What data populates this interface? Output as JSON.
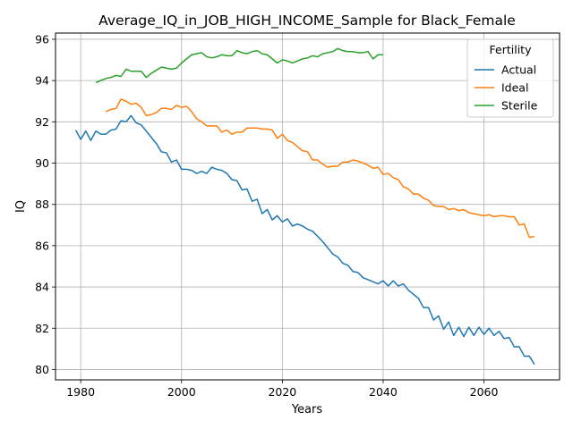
{
  "chart_data": {
    "type": "line",
    "title": "Average_IQ_in_JOB_HIGH_INCOME_Sample for Black_Female",
    "xlabel": "Years",
    "ylabel": "IQ",
    "xlim": [
      1975,
      2075
    ],
    "ylim": [
      79.5,
      96.3
    ],
    "xticks": [
      1980,
      2000,
      2020,
      2040,
      2060
    ],
    "yticks": [
      80,
      82,
      84,
      86,
      88,
      90,
      92,
      94,
      96
    ],
    "grid": true,
    "legend": {
      "title": "Fertility",
      "placement": "upper right"
    },
    "series": [
      {
        "name": "Actual",
        "color": "#1f77b4",
        "x": [
          1979,
          1980,
          1981,
          1982,
          1983,
          1984,
          1985,
          1986,
          1987,
          1988,
          1989,
          1990,
          1991,
          1992,
          1993,
          1994,
          1995,
          1996,
          1997,
          1998,
          1999,
          2000,
          2001,
          2002,
          2003,
          2004,
          2005,
          2006,
          2007,
          2008,
          2009,
          2010,
          2011,
          2012,
          2013,
          2014,
          2015,
          2016,
          2017,
          2018,
          2019,
          2020,
          2021,
          2022,
          2023,
          2024,
          2025,
          2026,
          2027,
          2028,
          2029,
          2030,
          2031,
          2032,
          2033,
          2034,
          2035,
          2036,
          2037,
          2038,
          2039,
          2040,
          2041,
          2042,
          2043,
          2044,
          2045,
          2046,
          2047,
          2048,
          2049,
          2050,
          2051,
          2052,
          2053,
          2054,
          2055,
          2056,
          2057,
          2058,
          2059,
          2060,
          2061,
          2062,
          2063,
          2064,
          2065,
          2066,
          2067,
          2068,
          2069,
          2070
        ],
        "values": [
          91.6,
          91.15,
          91.55,
          91.1,
          91.55,
          91.4,
          91.4,
          91.6,
          91.65,
          92.05,
          92.0,
          92.3,
          91.95,
          91.85,
          91.55,
          91.25,
          90.95,
          90.55,
          90.5,
          90.05,
          90.15,
          89.7,
          89.7,
          89.65,
          89.5,
          89.6,
          89.5,
          89.8,
          89.7,
          89.65,
          89.5,
          89.2,
          89.15,
          88.7,
          88.75,
          88.15,
          88.25,
          87.55,
          87.75,
          87.25,
          87.45,
          87.15,
          87.3,
          86.95,
          87.05,
          86.95,
          86.8,
          86.7,
          86.45,
          86.2,
          85.9,
          85.6,
          85.45,
          85.15,
          85.05,
          84.75,
          84.7,
          84.45,
          84.35,
          84.25,
          84.15,
          84.3,
          84.05,
          84.3,
          84.05,
          84.15,
          83.85,
          83.65,
          83.45,
          83.0,
          83.0,
          82.4,
          82.6,
          81.95,
          82.3,
          81.65,
          82.05,
          81.6,
          82.05,
          81.65,
          82.05,
          81.7,
          82.0,
          81.65,
          81.85,
          81.5,
          81.55,
          81.1,
          81.1,
          80.65,
          80.65,
          80.25
        ]
      },
      {
        "name": "Ideal",
        "color": "#ff7f0e",
        "x": [
          1985,
          1986,
          1987,
          1988,
          1989,
          1990,
          1991,
          1992,
          1993,
          1994,
          1995,
          1996,
          1997,
          1998,
          1999,
          2000,
          2001,
          2002,
          2003,
          2004,
          2005,
          2006,
          2007,
          2008,
          2009,
          2010,
          2011,
          2012,
          2013,
          2014,
          2015,
          2016,
          2017,
          2018,
          2019,
          2020,
          2021,
          2022,
          2023,
          2024,
          2025,
          2026,
          2027,
          2028,
          2029,
          2030,
          2031,
          2032,
          2033,
          2034,
          2035,
          2036,
          2037,
          2038,
          2039,
          2040,
          2041,
          2042,
          2043,
          2044,
          2045,
          2046,
          2047,
          2048,
          2049,
          2050,
          2051,
          2052,
          2053,
          2054,
          2055,
          2056,
          2057,
          2058,
          2059,
          2060,
          2061,
          2062,
          2063,
          2064,
          2065,
          2066,
          2067,
          2068,
          2069,
          2070
        ],
        "values": [
          92.5,
          92.6,
          92.65,
          93.1,
          93.0,
          92.85,
          92.9,
          92.7,
          92.3,
          92.35,
          92.45,
          92.65,
          92.65,
          92.6,
          92.8,
          92.7,
          92.75,
          92.5,
          92.15,
          92.0,
          91.8,
          91.8,
          91.8,
          91.5,
          91.6,
          91.4,
          91.5,
          91.5,
          91.7,
          91.7,
          91.7,
          91.65,
          91.65,
          91.6,
          91.2,
          91.4,
          91.1,
          91.0,
          90.8,
          90.6,
          90.55,
          90.15,
          90.15,
          89.95,
          89.8,
          89.85,
          89.85,
          90.05,
          90.05,
          90.15,
          90.1,
          90.0,
          89.9,
          89.75,
          89.8,
          89.45,
          89.5,
          89.3,
          89.2,
          88.85,
          88.75,
          88.5,
          88.5,
          88.3,
          88.2,
          87.95,
          87.9,
          87.9,
          87.75,
          87.8,
          87.7,
          87.75,
          87.6,
          87.55,
          87.5,
          87.45,
          87.5,
          87.4,
          87.45,
          87.45,
          87.4,
          87.4,
          87.0,
          87.05,
          86.4,
          86.45
        ]
      },
      {
        "name": "Sterile",
        "color": "#2ca02c",
        "x": [
          1983,
          1984,
          1985,
          1986,
          1987,
          1988,
          1989,
          1990,
          1991,
          1992,
          1993,
          1994,
          1995,
          1996,
          1997,
          1998,
          1999,
          2000,
          2001,
          2002,
          2003,
          2004,
          2005,
          2006,
          2007,
          2008,
          2009,
          2010,
          2011,
          2012,
          2013,
          2014,
          2015,
          2016,
          2017,
          2018,
          2019,
          2020,
          2021,
          2022,
          2023,
          2024,
          2025,
          2026,
          2027,
          2028,
          2029,
          2030,
          2031,
          2032,
          2033,
          2034,
          2035,
          2036,
          2037,
          2038,
          2039,
          2040
        ],
        "values": [
          93.9,
          94.0,
          94.1,
          94.15,
          94.25,
          94.2,
          94.55,
          94.45,
          94.45,
          94.45,
          94.15,
          94.35,
          94.5,
          94.65,
          94.6,
          94.55,
          94.6,
          94.85,
          95.05,
          95.25,
          95.3,
          95.35,
          95.15,
          95.1,
          95.15,
          95.25,
          95.2,
          95.2,
          95.45,
          95.35,
          95.3,
          95.4,
          95.45,
          95.3,
          95.25,
          95.05,
          94.85,
          95.0,
          94.95,
          94.85,
          94.95,
          95.05,
          95.1,
          95.2,
          95.15,
          95.3,
          95.35,
          95.4,
          95.55,
          95.45,
          95.4,
          95.4,
          95.35,
          95.35,
          95.4,
          95.05,
          95.25,
          95.25
        ]
      }
    ]
  }
}
